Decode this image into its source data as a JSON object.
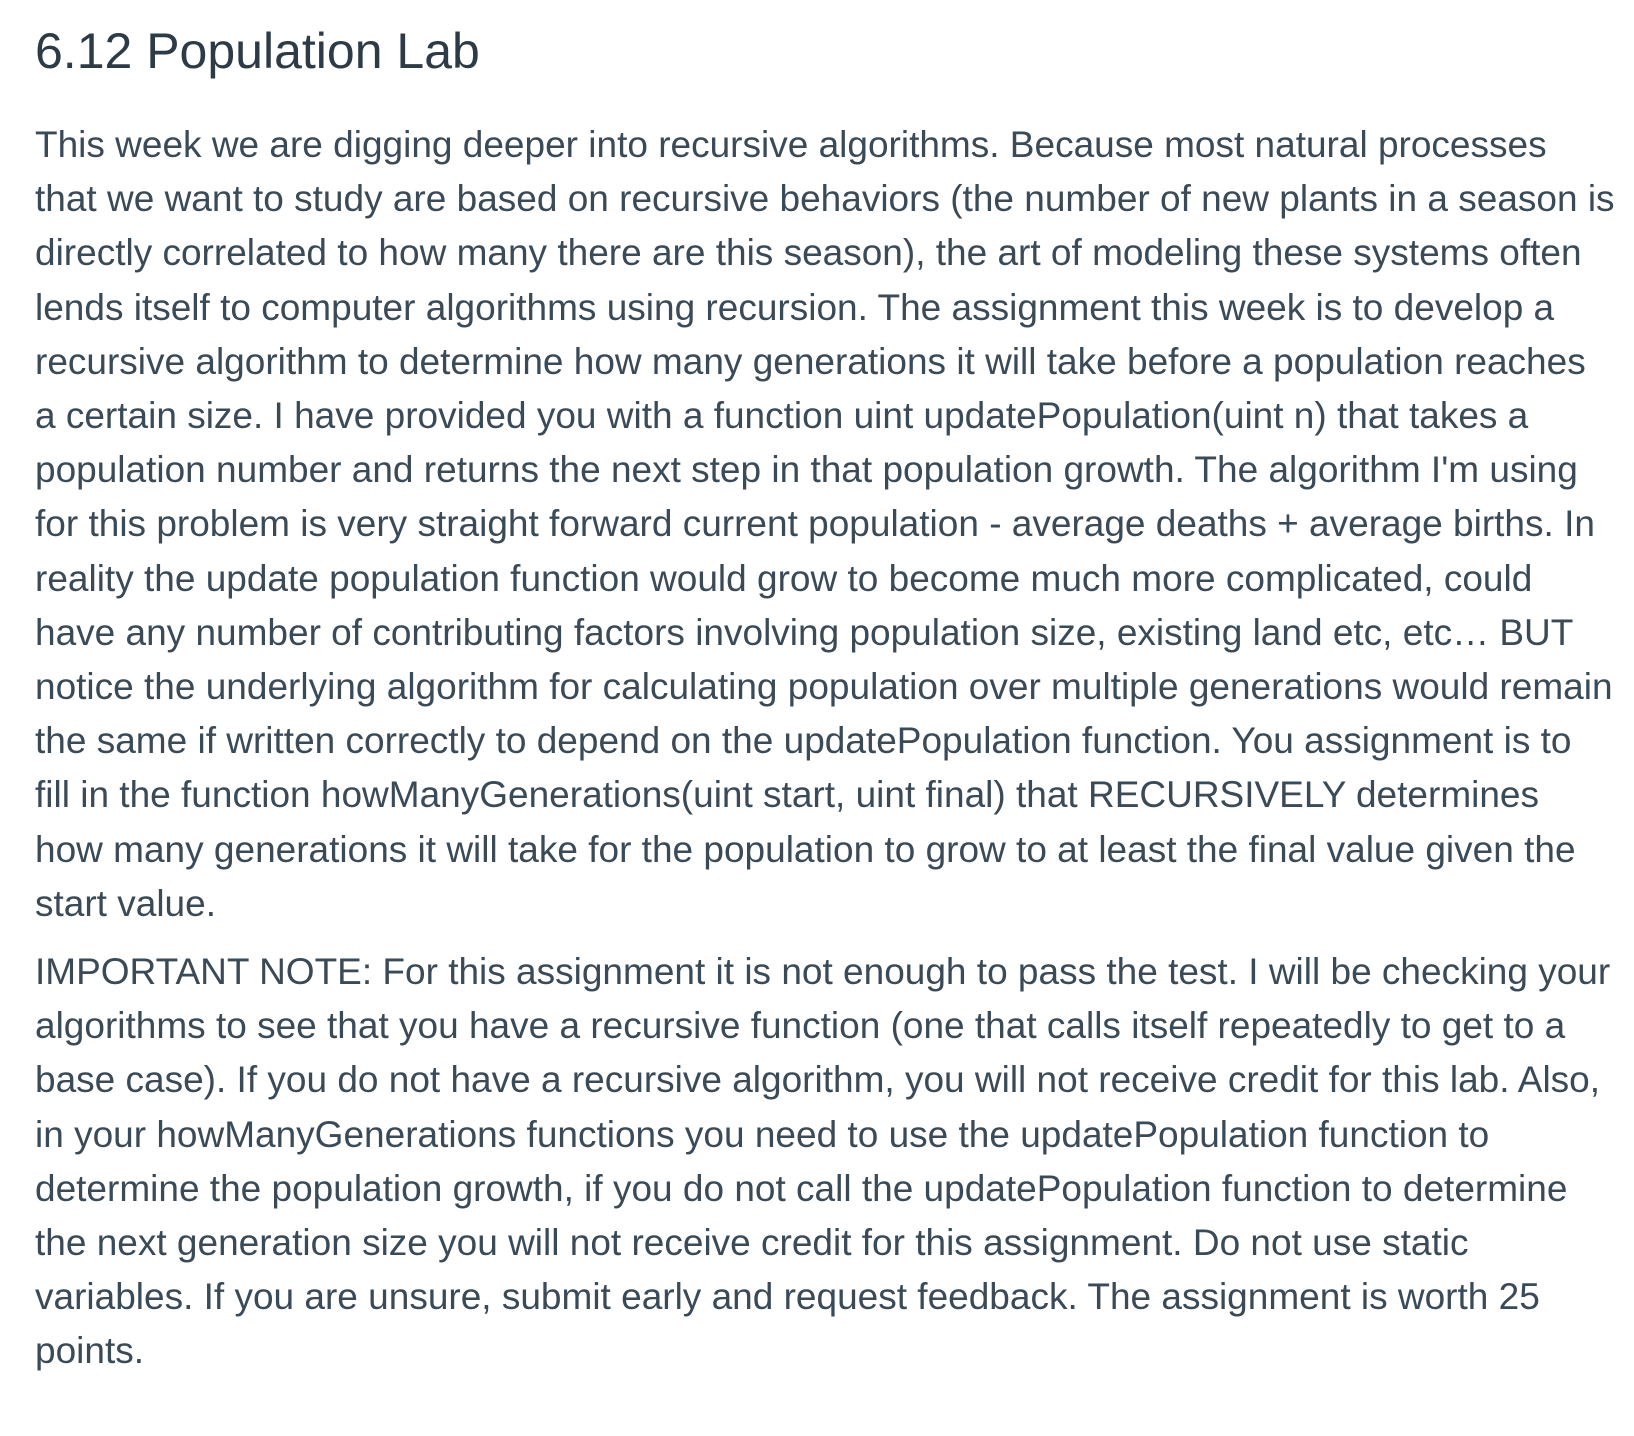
{
  "document": {
    "title": "6.12 Population Lab",
    "paragraphs": [
      "This week we are digging deeper into recursive algorithms. Because most natural processes that we want to study are based on recursive behaviors (the number of new plants in a season is directly correlated to how many there are this season), the art of modeling these systems often lends itself to computer algorithms using recursion. The assignment this week is to develop a recursive algorithm to determine how many generations it will take before a population reaches a certain size. I have provided you with a function uint updatePopulation(uint n) that takes a population number and returns the next step in that population growth. The algorithm I'm using for this problem is very straight forward current population - average deaths + average births. In reality the update population function would grow to become much more complicated, could have any number of contributing factors involving population size, existing land etc, etc… BUT notice the underlying algorithm for calculating population over multiple generations would remain the same if written correctly to depend on the updatePopulation function. You assignment is to fill in the function howManyGenerations(uint start, uint final) that RECURSIVELY determines how many generations it will take for the population to grow to at least the final value given the start value.",
      "IMPORTANT NOTE: For this assignment it is not enough to pass the test. I will be checking your algorithms to see that you have a recursive function (one that calls itself repeatedly to get to a base case). If you do not have a recursive algorithm, you will not receive credit for this lab. Also, in your howManyGenerations functions you need to use the updatePopulation function to determine the population growth, if you do not call the updatePopulation function to determine the next generation size you will not receive credit for this assignment. Do not use static variables. If you are unsure, submit early and request feedback. The assignment is worth 25 points."
    ]
  }
}
